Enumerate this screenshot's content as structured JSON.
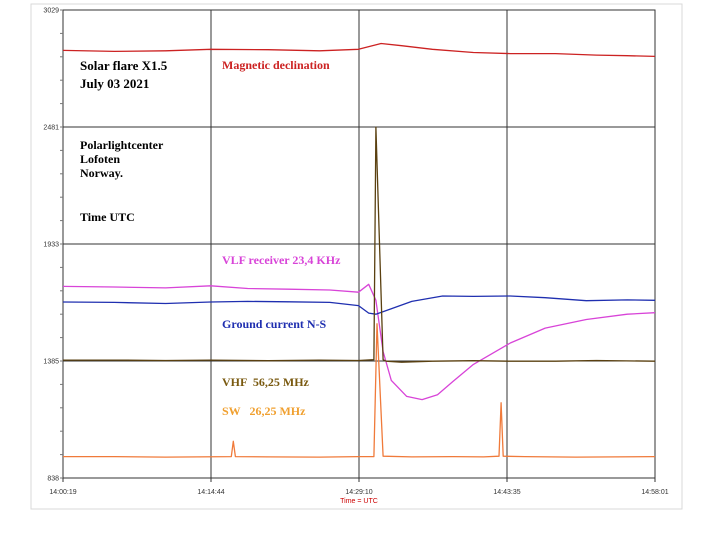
{
  "chart_data": {
    "type": "line",
    "title": "Solar flare X1.5",
    "subtitle": "July 03 2021",
    "annotations": {
      "org_line1": "Polarlightcenter",
      "org_line2": "Lofoten",
      "org_line3": "Norway.",
      "time_note": "Time UTC"
    },
    "xlabel": "Time = UTC",
    "x_ticks": [
      "14:00:19",
      "14:14:44",
      "14:29:10",
      "14:43:35",
      "14:58:01"
    ],
    "y_ticks": [
      "3029",
      "2481",
      "1933",
      "1385",
      "838"
    ],
    "ylim": [
      838,
      3029
    ],
    "xlim_minutes": [
      0,
      57.7
    ],
    "grid": true,
    "colors": {
      "magnetic": "#cc2222",
      "vlf": "#d844d8",
      "ground": "#1f2fb0",
      "vhf": "#5a4010",
      "sw": "#f07a3a",
      "grid": "#333333",
      "axis_label": "#cc0000"
    },
    "series": [
      {
        "name": "Magnetic declination",
        "key": "magnetic",
        "x": [
          0,
          5,
          10,
          14.4,
          20,
          25,
          28.8,
          31,
          33,
          36,
          40,
          43.6,
          48,
          52,
          55,
          57.7
        ],
        "y": [
          2840,
          2835,
          2838,
          2845,
          2843,
          2838,
          2845,
          2872,
          2862,
          2845,
          2830,
          2825,
          2825,
          2818,
          2815,
          2812
        ]
      },
      {
        "name": "VLF receiver 23,4 KHz",
        "key": "vlf",
        "x": [
          0,
          5,
          10,
          14.4,
          18,
          22,
          26,
          28.8,
          29.8,
          30.5,
          31.2,
          32,
          33.5,
          35,
          36.5,
          38,
          40,
          43.6,
          47,
          51,
          55,
          57.7
        ],
        "y": [
          1735,
          1732,
          1728,
          1738,
          1725,
          1722,
          1718,
          1708,
          1745,
          1670,
          1430,
          1295,
          1220,
          1205,
          1228,
          1290,
          1370,
          1470,
          1540,
          1580,
          1605,
          1612
        ]
      },
      {
        "name": "Ground current N-S",
        "key": "ground",
        "x": [
          0,
          5,
          10,
          14.4,
          18,
          22,
          26,
          28.8,
          29.8,
          30.5,
          32,
          34,
          37,
          40,
          43.6,
          47,
          51,
          55,
          57.7
        ],
        "y": [
          1662,
          1660,
          1655,
          1662,
          1665,
          1663,
          1660,
          1645,
          1610,
          1605,
          1630,
          1665,
          1690,
          1688,
          1690,
          1682,
          1668,
          1672,
          1670
        ]
      },
      {
        "name": "VHF  56,25 MHz",
        "key": "vhf",
        "x": [
          0,
          5,
          10,
          14.4,
          20,
          25,
          28.8,
          30.3,
          30.5,
          31.2,
          31.5,
          33,
          36,
          40,
          43.6,
          48,
          52,
          57.7
        ],
        "y": [
          1390,
          1390,
          1388,
          1390,
          1387,
          1390,
          1388,
          1392,
          2480,
          1392,
          1385,
          1380,
          1385,
          1387,
          1385,
          1385,
          1388,
          1385
        ]
      },
      {
        "name": "SW   26,25 MHz",
        "key": "sw",
        "x": [
          0,
          5,
          10,
          16.4,
          16.6,
          16.8,
          20,
          25,
          28.8,
          30.3,
          30.6,
          31.2,
          34,
          38,
          41,
          42.5,
          42.7,
          42.9,
          45,
          50,
          57.7
        ],
        "y": [
          938,
          938,
          936,
          938,
          1010,
          938,
          937,
          936,
          938,
          938,
          1560,
          940,
          937,
          938,
          937,
          940,
          1190,
          940,
          938,
          936,
          938
        ]
      }
    ]
  }
}
